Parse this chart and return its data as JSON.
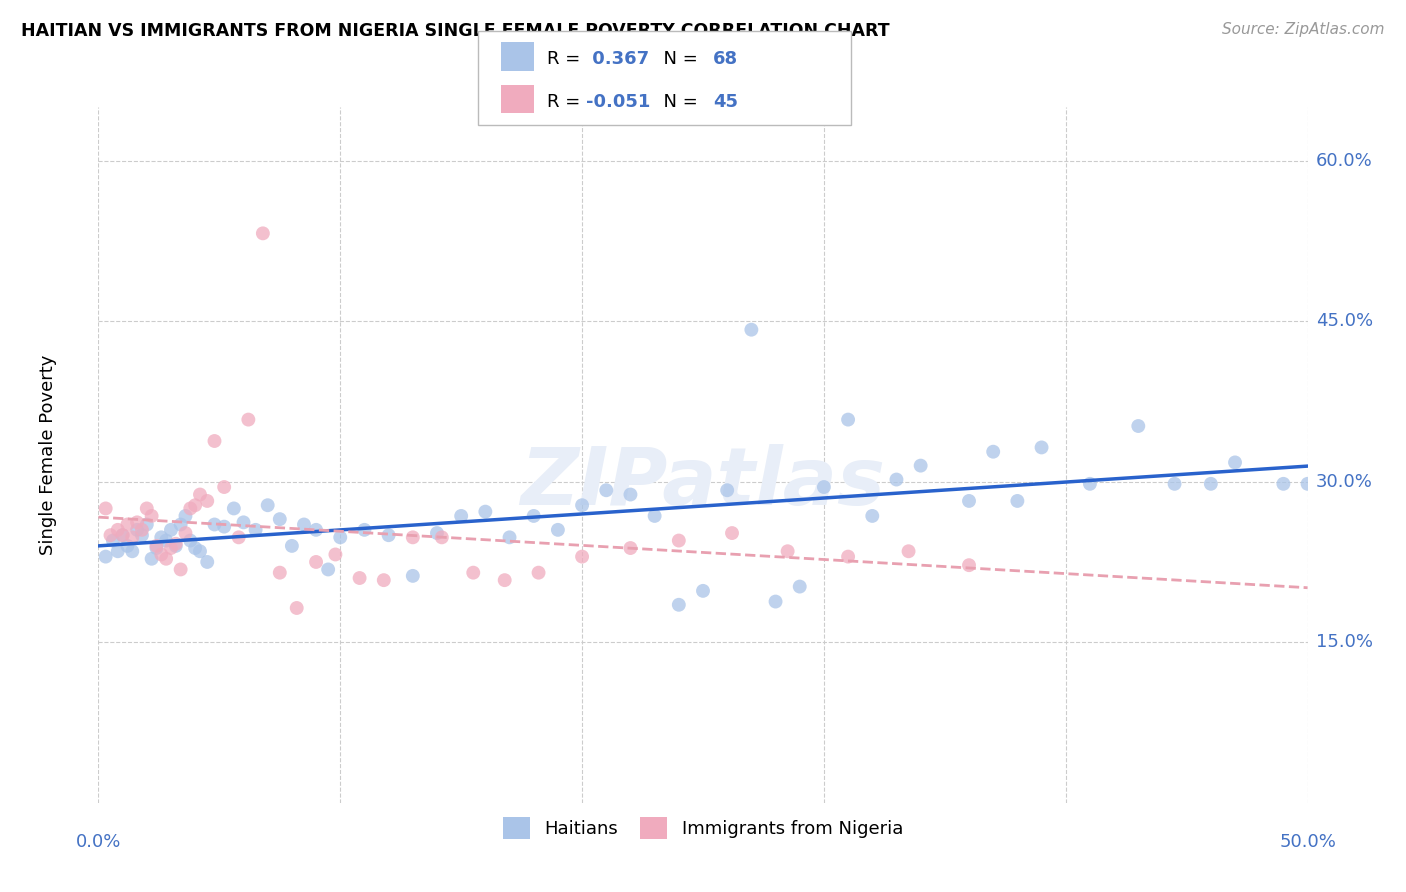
{
  "title": "HAITIAN VS IMMIGRANTS FROM NIGERIA SINGLE FEMALE POVERTY CORRELATION CHART",
  "source": "Source: ZipAtlas.com",
  "ylabel": "Single Female Poverty",
  "ytick_values": [
    0.15,
    0.3,
    0.45,
    0.6
  ],
  "ytick_labels": [
    "15.0%",
    "30.0%",
    "45.0%",
    "60.0%"
  ],
  "xtick_values": [
    0.0,
    0.1,
    0.2,
    0.3,
    0.4,
    0.5
  ],
  "xtick_labels": [
    "0.0%",
    "",
    "",
    "",
    "",
    "50.0%"
  ],
  "xlim": [
    0.0,
    0.5
  ],
  "ylim": [
    0.0,
    0.65
  ],
  "legend_labels": [
    "Haitians",
    "Immigrants from Nigeria"
  ],
  "blue_R": "0.367",
  "blue_N": "68",
  "pink_R": "-0.051",
  "pink_N": "45",
  "blue_color": "#aac4e8",
  "pink_color": "#f0abbe",
  "blue_line_color": "#2962cc",
  "pink_line_color": "#e8a0b0",
  "axis_label_color": "#4472c4",
  "watermark": "ZIPatlas",
  "blue_points_x": [
    0.003,
    0.006,
    0.008,
    0.01,
    0.012,
    0.014,
    0.016,
    0.018,
    0.02,
    0.022,
    0.024,
    0.026,
    0.028,
    0.03,
    0.032,
    0.034,
    0.036,
    0.038,
    0.04,
    0.042,
    0.045,
    0.048,
    0.052,
    0.056,
    0.06,
    0.065,
    0.07,
    0.075,
    0.08,
    0.085,
    0.09,
    0.095,
    0.1,
    0.11,
    0.12,
    0.13,
    0.14,
    0.15,
    0.16,
    0.17,
    0.18,
    0.19,
    0.2,
    0.21,
    0.22,
    0.23,
    0.24,
    0.25,
    0.26,
    0.27,
    0.28,
    0.29,
    0.3,
    0.31,
    0.32,
    0.33,
    0.34,
    0.36,
    0.37,
    0.38,
    0.39,
    0.41,
    0.43,
    0.445,
    0.46,
    0.47,
    0.49,
    0.5
  ],
  "blue_points_y": [
    0.23,
    0.245,
    0.235,
    0.25,
    0.24,
    0.235,
    0.255,
    0.25,
    0.26,
    0.228,
    0.238,
    0.248,
    0.245,
    0.255,
    0.24,
    0.26,
    0.268,
    0.245,
    0.238,
    0.235,
    0.225,
    0.26,
    0.258,
    0.275,
    0.262,
    0.255,
    0.278,
    0.265,
    0.24,
    0.26,
    0.255,
    0.218,
    0.248,
    0.255,
    0.25,
    0.212,
    0.252,
    0.268,
    0.272,
    0.248,
    0.268,
    0.255,
    0.278,
    0.292,
    0.288,
    0.268,
    0.185,
    0.198,
    0.292,
    0.442,
    0.188,
    0.202,
    0.295,
    0.358,
    0.268,
    0.302,
    0.315,
    0.282,
    0.328,
    0.282,
    0.332,
    0.298,
    0.352,
    0.298,
    0.298,
    0.318,
    0.298,
    0.298
  ],
  "pink_points_x": [
    0.003,
    0.005,
    0.008,
    0.01,
    0.012,
    0.014,
    0.016,
    0.018,
    0.02,
    0.022,
    0.024,
    0.026,
    0.028,
    0.03,
    0.032,
    0.034,
    0.036,
    0.038,
    0.04,
    0.042,
    0.045,
    0.048,
    0.052,
    0.058,
    0.062,
    0.068,
    0.075,
    0.082,
    0.09,
    0.098,
    0.108,
    0.118,
    0.13,
    0.142,
    0.155,
    0.168,
    0.182,
    0.2,
    0.22,
    0.24,
    0.262,
    0.285,
    0.31,
    0.335,
    0.36
  ],
  "pink_points_y": [
    0.275,
    0.25,
    0.255,
    0.25,
    0.26,
    0.248,
    0.262,
    0.255,
    0.275,
    0.268,
    0.24,
    0.232,
    0.228,
    0.238,
    0.242,
    0.218,
    0.252,
    0.275,
    0.278,
    0.288,
    0.282,
    0.338,
    0.295,
    0.248,
    0.358,
    0.532,
    0.215,
    0.182,
    0.225,
    0.232,
    0.21,
    0.208,
    0.248,
    0.248,
    0.215,
    0.208,
    0.215,
    0.23,
    0.238,
    0.245,
    0.252,
    0.235,
    0.23,
    0.235,
    0.222
  ]
}
